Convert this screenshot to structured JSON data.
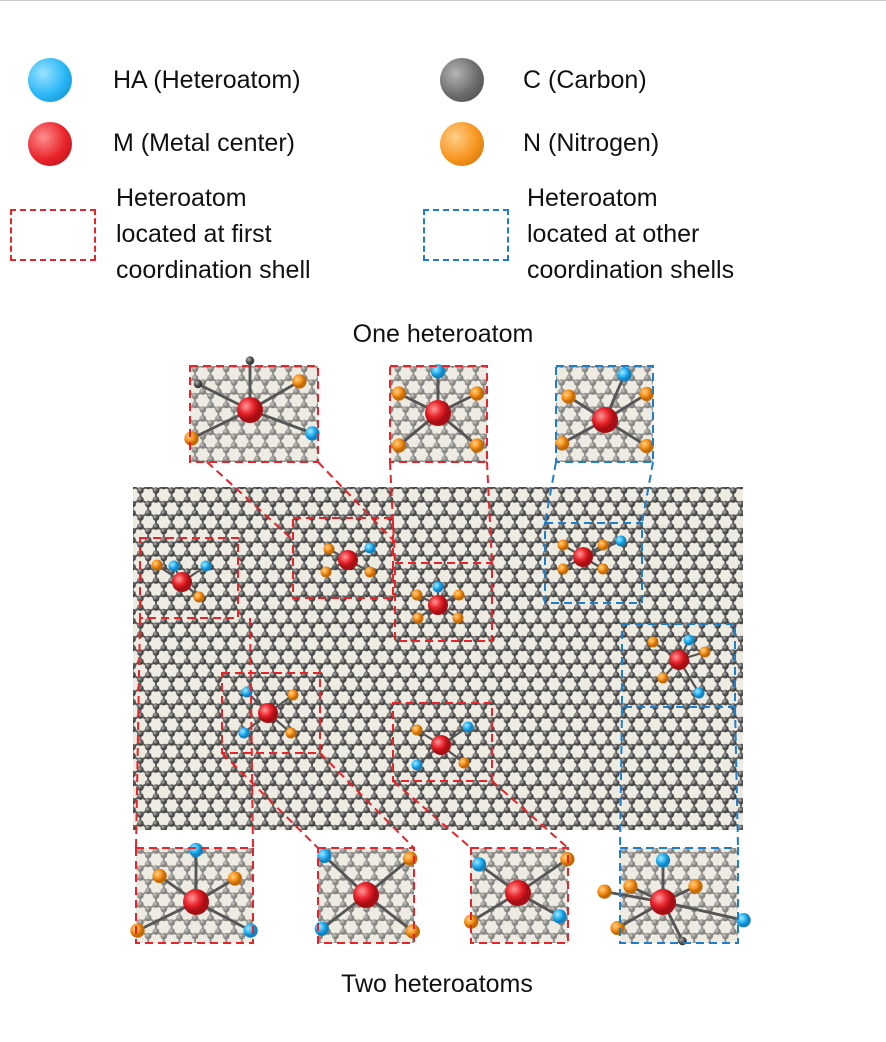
{
  "colors": {
    "heteroatom": "#29b6f6",
    "metal": "#e8232a",
    "carbon": "#6b6b6b",
    "nitrogen": "#f7941d",
    "first_shell": "#e8232a",
    "other_shell": "#1f7ec9",
    "substrate": "#eeebe3"
  },
  "legend": {
    "heteroatom": "HA (Heteroatom)",
    "metal": "M (Metal center)",
    "carbon": "C (Carbon)",
    "nitrogen": "N (Nitrogen)",
    "first_shell": "Heteroatom\nlocated at first\ncoordination shell",
    "other_shell": "Heteroatom\nlocated at other\ncoordination shells"
  },
  "titles": {
    "one": "One heteroatom",
    "two": "Two heteroatoms"
  }
}
